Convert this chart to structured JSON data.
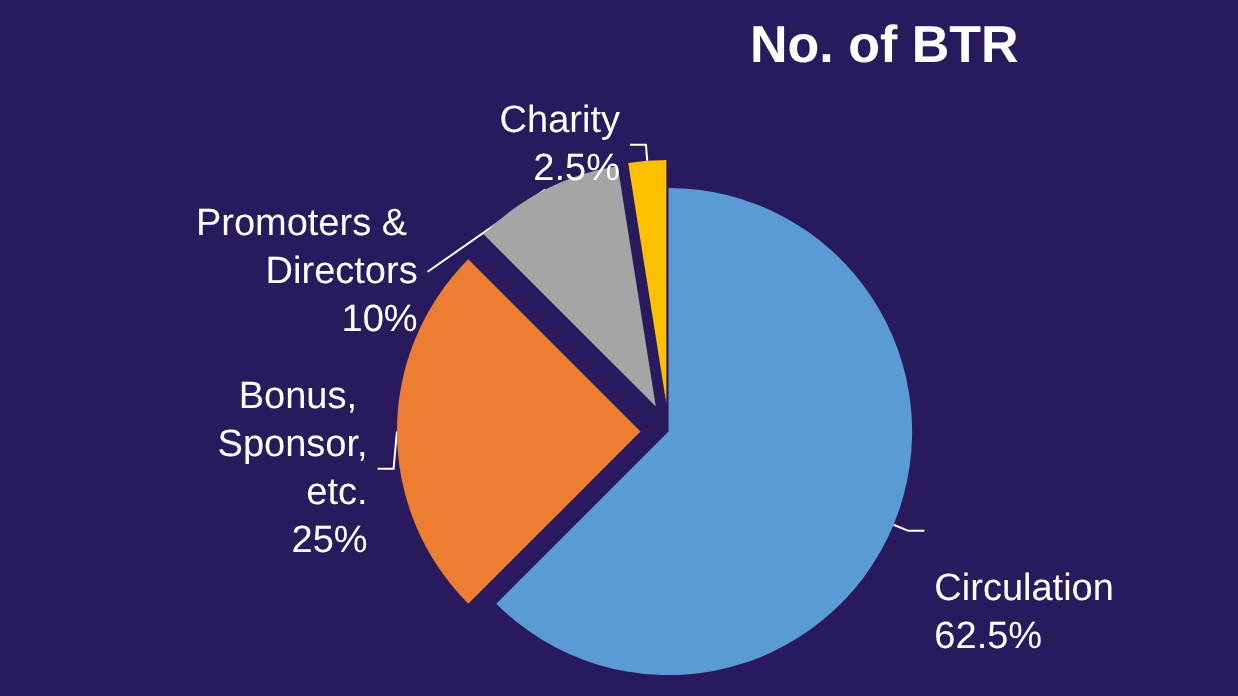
{
  "chart_data": {
    "type": "pie",
    "title": "No. of BTR",
    "categories": [
      "Circulation",
      "Bonus, Sponsor, etc.",
      "Promoters & Directors",
      "Charity"
    ],
    "values": [
      62.5,
      25,
      10,
      2.5
    ],
    "colors": [
      "#5b9bd5",
      "#ed7d31",
      "#a5a5a5",
      "#ffc000"
    ],
    "value_labels": [
      "62.5%",
      "25%",
      "10%",
      "2.5%"
    ],
    "legend": false
  }
}
